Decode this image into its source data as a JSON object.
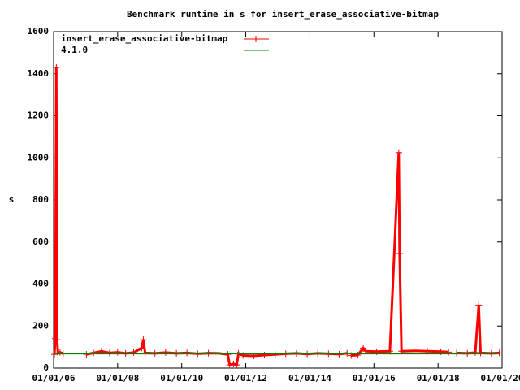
{
  "chart_data": {
    "type": "line",
    "title": "Benchmark runtime in s for insert_erase_associative-bitmap",
    "y_label": "s",
    "xlim": [
      "2006-01-01",
      "2020-01-01"
    ],
    "xticks": [
      {
        "value": "2006-01-01",
        "label": "01/01/06"
      },
      {
        "value": "2008-01-01",
        "label": "01/01/08"
      },
      {
        "value": "2010-01-01",
        "label": "01/01/10"
      },
      {
        "value": "2012-01-01",
        "label": "01/01/12"
      },
      {
        "value": "2014-01-01",
        "label": "01/01/14"
      },
      {
        "value": "2016-01-01",
        "label": "01/01/16"
      },
      {
        "value": "2018-01-01",
        "label": "01/01/18"
      },
      {
        "value": "2020-01-01",
        "label": "01/01/20"
      }
    ],
    "ylim": [
      0,
      1600
    ],
    "yticks": [
      0,
      200,
      400,
      600,
      800,
      1000,
      1200,
      1400,
      1600
    ],
    "grid": false,
    "legend": "top-left",
    "series": [
      {
        "name": "insert_erase_associative-bitmap",
        "color": "#ff0000",
        "markers": true,
        "x": [
          "2006-01-10",
          "2006-01-20",
          "2006-02-01",
          "2006-02-10",
          "2006-02-20",
          "2006-03-15",
          "2006-04-20",
          "2006-09-01",
          "2007-01-10",
          "2007-04-01",
          "2007-07-01",
          "2007-10-01",
          "2008-01-01",
          "2008-04-01",
          "2008-07-01",
          "2008-10-01",
          "2008-10-20",
          "2008-11-10",
          "2009-03-01",
          "2009-07-01",
          "2009-11-01",
          "2010-03-01",
          "2010-07-01",
          "2010-11-01",
          "2011-03-01",
          "2011-06-10",
          "2011-07-01",
          "2011-08-15",
          "2011-09-20",
          "2011-10-10",
          "2011-12-01",
          "2012-04-01",
          "2012-08-01",
          "2012-12-01",
          "2013-04-01",
          "2013-08-01",
          "2013-12-01",
          "2014-04-01",
          "2014-08-01",
          "2014-12-01",
          "2015-03-01",
          "2015-03-20",
          "2015-04-15",
          "2015-07-01",
          "2015-09-01",
          "2015-10-01",
          "2016-02-01",
          "2016-07-01",
          "2016-10-10",
          "2016-10-20",
          "2016-11-10",
          "2017-04-01",
          "2017-09-01",
          "2018-02-01",
          "2018-05-01",
          "2018-06-15",
          "2018-08-01",
          "2018-12-01",
          "2019-03-01",
          "2019-04-10",
          "2019-05-01",
          "2019-09-01",
          "2019-12-01"
        ],
        "values": [
          65,
          140,
          1430,
          135,
          70,
          75,
          68,
          null,
          65,
          72,
          80,
          72,
          75,
          70,
          74,
          95,
          135,
          72,
          70,
          74,
          70,
          72,
          68,
          71,
          70,
          65,
          15,
          20,
          15,
          70,
          60,
          58,
          62,
          65,
          68,
          70,
          67,
          70,
          68,
          66,
          70,
          null,
          60,
          62,
          95,
          80,
          78,
          80,
          1025,
          545,
          80,
          82,
          80,
          78,
          76,
          null,
          72,
          70,
          74,
          300,
          72,
          70,
          72
        ]
      },
      {
        "name": "4.1.0",
        "color": "#008000",
        "markers": false,
        "x": [
          "2006-01-15",
          "2019-11-20"
        ],
        "values": [
          68,
          68
        ]
      }
    ]
  }
}
